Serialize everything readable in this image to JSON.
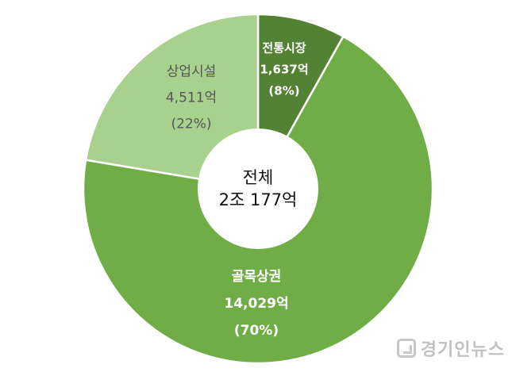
{
  "chart_data": {
    "type": "pie",
    "donut": true,
    "center_label": {
      "line1": "전체",
      "line2": "2조 177억"
    },
    "slices": [
      {
        "name": "전통시장",
        "value_label": "1,637억",
        "percent_label": "(8%)",
        "value": 1637,
        "color": "#548235",
        "label_color": "#ffffff",
        "bold": true
      },
      {
        "name": "골목상권",
        "value_label": "14,029억",
        "percent_label": "(70%)",
        "value": 14029,
        "color": "#70ad47",
        "label_color": "#ffffff",
        "bold": true
      },
      {
        "name": "상업시설",
        "value_label": "4,511억",
        "percent_label": "(22%)",
        "value": 4511,
        "color": "#a9d18e",
        "label_color": "#555555",
        "bold": false
      }
    ],
    "colors": {
      "separator": "#ffffff",
      "hole": "#ffffff"
    }
  },
  "watermark": {
    "text": "경기인뉴스"
  }
}
